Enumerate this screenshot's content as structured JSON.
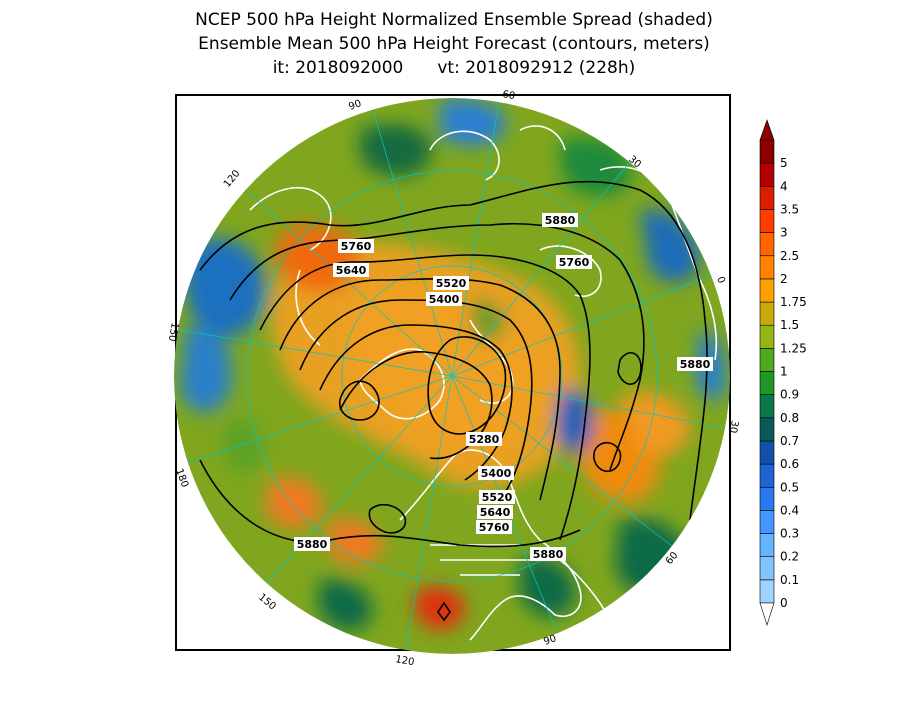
{
  "title": {
    "line1": "NCEP 500 hPa Height Normalized Ensemble Spread (shaded)",
    "line2": "Ensemble Mean 500 hPa Height Forecast (contours, meters)",
    "init_label": "it: 2018092000",
    "valid_label": "vt: 2018092912 (228h)"
  },
  "map": {
    "projection": "north polar stereographic",
    "longitude_labels": [
      "60",
      "30",
      "0",
      "30",
      "60",
      "90",
      "120",
      "150",
      "180",
      "150",
      "120",
      "90"
    ],
    "contour_labels": [
      "5880",
      "5760",
      "5640",
      "5520",
      "5400",
      "5760",
      "5880",
      "5280",
      "5400",
      "5520",
      "5640",
      "5760",
      "5880",
      "5880"
    ],
    "colors": {
      "land_outline": "#ffffff",
      "contour": "#000000",
      "graticule": "#00c8c8"
    }
  },
  "colorbar": {
    "levels": [
      "0",
      "0.1",
      "0.2",
      "0.3",
      "0.4",
      "0.5",
      "0.6",
      "0.7",
      "0.8",
      "0.9",
      "1",
      "1.25",
      "1.5",
      "1.75",
      "2",
      "2.5",
      "3",
      "3.5",
      "4",
      "5"
    ],
    "colors": [
      "#a0d2ff",
      "#82c3ff",
      "#64b4ff",
      "#4696ff",
      "#2878f0",
      "#1e64d2",
      "#1450aa",
      "#0a5a5a",
      "#0a7846",
      "#1e9628",
      "#50aa1e",
      "#96b414",
      "#c8aa0a",
      "#ffa000",
      "#ff8200",
      "#ff6400",
      "#ff3c00",
      "#dc1e00",
      "#b40000",
      "#8c0000"
    ]
  }
}
